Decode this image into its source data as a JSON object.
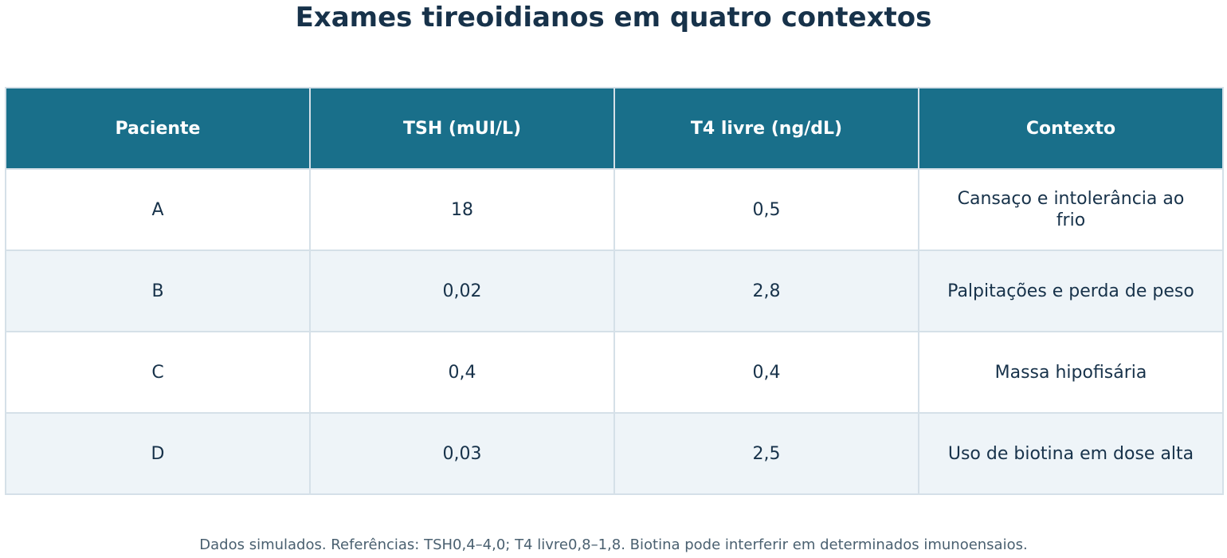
{
  "chart_data": {
    "type": "table",
    "title": "Exames tireoidianos em quatro contextos",
    "columns": [
      "Paciente",
      "TSH (mUI/L)",
      "T4 livre (ng/dL)",
      "Contexto"
    ],
    "rows": [
      [
        "A",
        "18",
        "0,5",
        "Cansaço e intolerância ao frio"
      ],
      [
        "B",
        "0,02",
        "2,8",
        "Palpitações e perda de peso"
      ],
      [
        "C",
        "0,4",
        "0,4",
        "Massa hipofisária"
      ],
      [
        "D",
        "0,03",
        "2,5",
        "Uso de biotina em dose alta"
      ]
    ],
    "footnote": "Dados simulados. Referências: TSH0,4–4,0; T4 livre0,8–1,8. Biotina pode interferir em determinados imunoensaios."
  },
  "colors": {
    "header_background": "#196f8a",
    "header_text": "#ffffff",
    "body_text": "#17324a",
    "alternate_row_background": "#eef4f8",
    "border": "#d5e0e8",
    "footnote_text": "#4a6070"
  }
}
